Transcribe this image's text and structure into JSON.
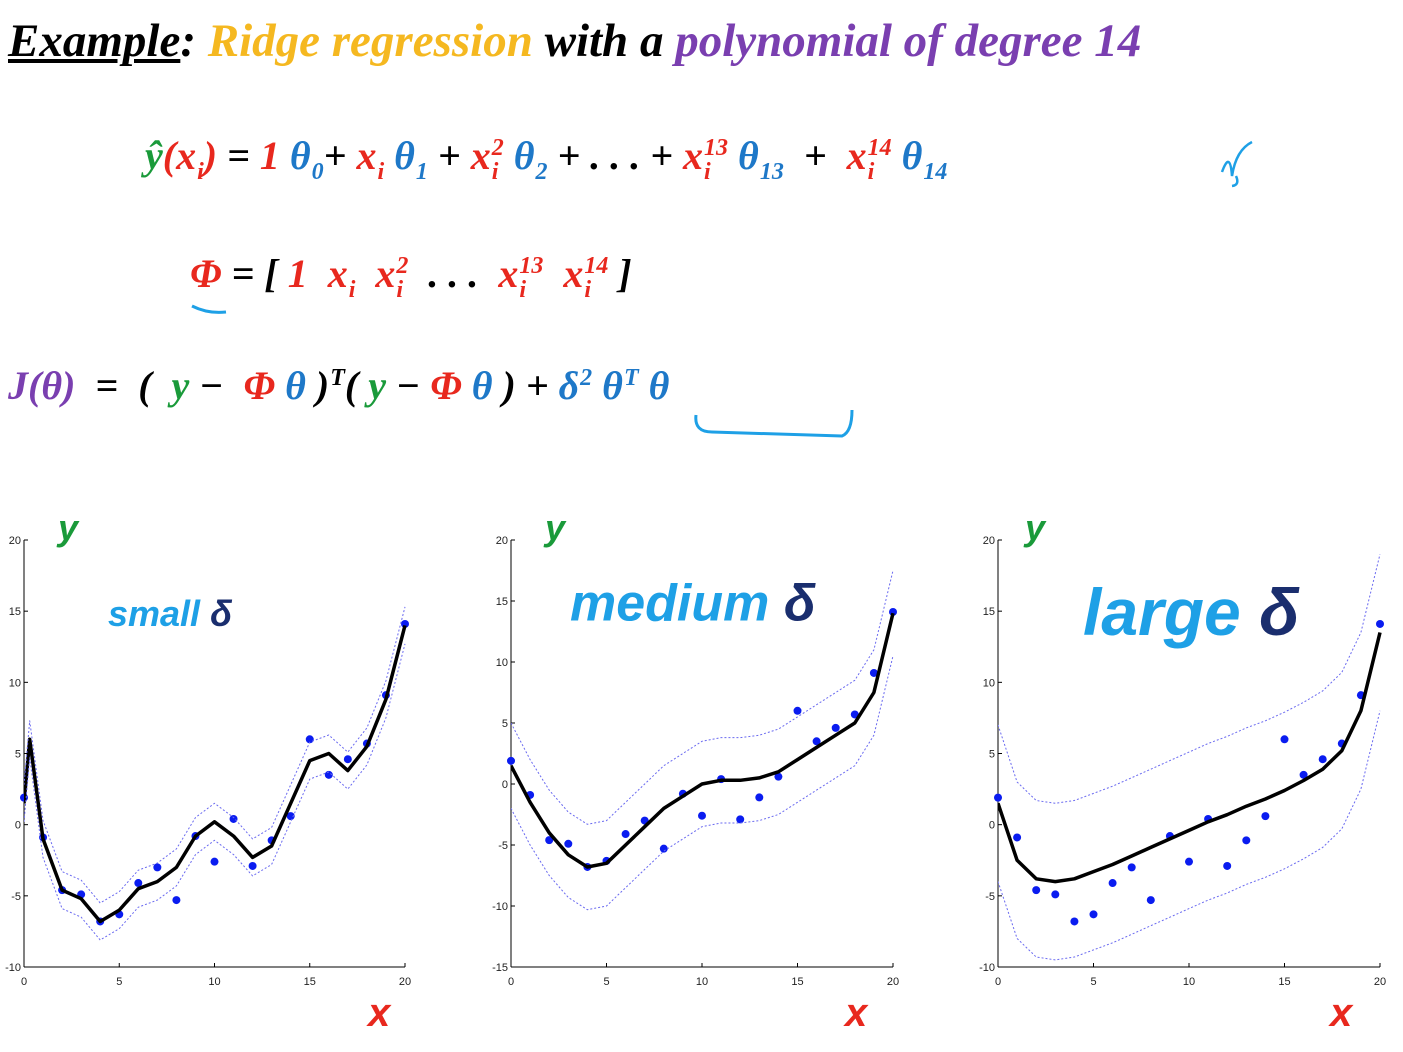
{
  "slide": {
    "title": [
      {
        "t": "Example",
        "color": "#000000",
        "underline": true
      },
      {
        "t": ": ",
        "color": "#000000"
      },
      {
        "t": "Ridge regression ",
        "color": "#f5b820"
      },
      {
        "t": "with a ",
        "color": "#000000"
      },
      {
        "t": "polynomial of degree 14",
        "color": "#7a3fb0"
      }
    ],
    "equations": [
      [
        {
          "t": "ŷ",
          "color": "#1a9a3a"
        },
        {
          "t": "(x",
          "sub": "i",
          "color": "#e8281e"
        },
        {
          "t": ") ",
          "color": "#e8281e"
        },
        {
          "t": "= ",
          "color": "#000000"
        },
        {
          "t": "1 ",
          "color": "#e8281e"
        },
        {
          "t": "θ",
          "sub": "0",
          "color": "#1e78c8"
        },
        {
          "t": "+ ",
          "color": "#000000"
        },
        {
          "t": "x",
          "sub": "i",
          "color": "#e8281e"
        },
        {
          "t": " θ",
          "sub": "1",
          "color": "#1e78c8"
        },
        {
          "t": " + ",
          "color": "#000000"
        },
        {
          "t": "x",
          "sub": "i",
          "sup": "2",
          "color": "#e8281e"
        },
        {
          "t": " θ",
          "sub": "2",
          "color": "#1e78c8"
        },
        {
          "t": " + . . . + ",
          "color": "#000000"
        },
        {
          "t": "x",
          "sub": "i",
          "sup": "13",
          "color": "#e8281e"
        },
        {
          "t": " θ",
          "sub": "13",
          "color": "#1e78c8"
        },
        {
          "t": "  +  ",
          "color": "#000000"
        },
        {
          "t": "x",
          "sub": "i",
          "sup": "14",
          "color": "#e8281e"
        },
        {
          "t": " θ",
          "sub": "14",
          "color": "#1e78c8"
        }
      ],
      [
        {
          "t": "Φ",
          "color": "#e8281e"
        },
        {
          "t": " = [ ",
          "color": "#000000"
        },
        {
          "t": "1  x",
          "sub": "i",
          "color": "#e8281e"
        },
        {
          "t": "  x",
          "sub": "i",
          "sup": "2",
          "color": "#e8281e"
        },
        {
          "t": "  . . .  ",
          "color": "#000000"
        },
        {
          "t": "x",
          "sub": "i",
          "sup": "13",
          "color": "#e8281e"
        },
        {
          "t": "  x",
          "sub": "i",
          "sup": "14",
          "color": "#e8281e"
        },
        {
          "t": " ]",
          "color": "#000000"
        }
      ],
      [
        {
          "t": "J(θ)",
          "color": "#7a3fb0"
        },
        {
          "t": "  =  (  ",
          "color": "#000000"
        },
        {
          "t": "y",
          "color": "#1a9a3a"
        },
        {
          "t": " −  ",
          "color": "#000000"
        },
        {
          "t": "Φ",
          "color": "#e8281e"
        },
        {
          "t": " θ",
          "color": "#1e78c8"
        },
        {
          "t": " )",
          "sup": "T",
          "color": "#000000"
        },
        {
          "t": "( ",
          "color": "#000000"
        },
        {
          "t": "y",
          "color": "#1a9a3a"
        },
        {
          "t": " − ",
          "color": "#000000"
        },
        {
          "t": "Φ",
          "color": "#e8281e"
        },
        {
          "t": " θ",
          "color": "#1e78c8"
        },
        {
          "t": " ) + ",
          "color": "#000000"
        },
        {
          "t": "δ",
          "sup": "2",
          "color": "#1e78c8"
        },
        {
          "t": " θ",
          "sup": "T",
          "color": "#1e78c8"
        },
        {
          "t": " θ",
          "color": "#1e78c8"
        }
      ]
    ]
  },
  "chart_data": [
    {
      "type": "line",
      "y_label": "y",
      "x_label": "x",
      "annotation": "small ",
      "annotation_symbol": "δ",
      "xlim": [
        0,
        20
      ],
      "ylim": [
        -10,
        20
      ],
      "xticks": [
        0,
        5,
        10,
        15,
        20
      ],
      "yticks": [
        -10,
        -5,
        0,
        5,
        10,
        15,
        20
      ],
      "series": [
        {
          "mode": "points",
          "color": "#0a1cf0",
          "x": [
            0,
            1,
            2,
            3,
            4,
            5,
            6,
            7,
            8,
            9,
            10,
            11,
            12,
            13,
            14,
            15,
            16,
            17,
            18,
            19,
            20
          ],
          "values": [
            1.9,
            -0.9,
            -4.6,
            -4.9,
            -6.8,
            -6.3,
            -4.1,
            -3.0,
            -5.3,
            -0.8,
            -2.6,
            0.4,
            -2.9,
            -1.1,
            0.6,
            6.0,
            3.5,
            4.6,
            5.7,
            9.1,
            14.1
          ]
        },
        {
          "mode": "line",
          "color": "#000000",
          "x": [
            0,
            0.3,
            1,
            2,
            3,
            4,
            5,
            6,
            7,
            8,
            9,
            10,
            11,
            12,
            13,
            14,
            15,
            16,
            17,
            18,
            19,
            20
          ],
          "values": [
            1.5,
            6,
            -1,
            -4.6,
            -5.2,
            -6.8,
            -6,
            -4.5,
            -4,
            -3,
            -0.8,
            0.2,
            -0.8,
            -2.3,
            -1.5,
            1.5,
            4.5,
            5,
            3.8,
            5.5,
            8.8,
            14
          ]
        },
        {
          "mode": "dotted",
          "color": "#6a6af0",
          "x": [
            0,
            0.3,
            1,
            2,
            3,
            4,
            5,
            6,
            7,
            8,
            9,
            10,
            11,
            12,
            13,
            14,
            15,
            16,
            17,
            18,
            19,
            20
          ],
          "values": [
            2.8,
            7.3,
            0.3,
            -3.3,
            -3.9,
            -5.5,
            -4.7,
            -3.2,
            -2.7,
            -1.7,
            0.5,
            1.5,
            0.5,
            -1,
            -0.2,
            2.8,
            5.8,
            6.3,
            5.1,
            6.8,
            10.1,
            15.3
          ]
        },
        {
          "mode": "dotted",
          "color": "#6a6af0",
          "x": [
            0,
            0.3,
            1,
            2,
            3,
            4,
            5,
            6,
            7,
            8,
            9,
            10,
            11,
            12,
            13,
            14,
            15,
            16,
            17,
            18,
            19,
            20
          ],
          "values": [
            0.2,
            4.7,
            -2.3,
            -5.9,
            -6.5,
            -8.1,
            -7.3,
            -5.8,
            -5.3,
            -4.3,
            -2.1,
            -1.1,
            -2.1,
            -3.6,
            -2.8,
            0.2,
            3.2,
            3.7,
            2.5,
            4.2,
            7.5,
            12.7
          ]
        }
      ]
    },
    {
      "type": "line",
      "y_label": "y",
      "x_label": "x",
      "annotation": "medium ",
      "annotation_symbol": "δ",
      "xlim": [
        0,
        20
      ],
      "ylim": [
        -15,
        20
      ],
      "xticks": [
        0,
        5,
        10,
        15,
        20
      ],
      "yticks": [
        -15,
        -10,
        -5,
        0,
        5,
        10,
        15,
        20
      ],
      "series": [
        {
          "mode": "points",
          "color": "#0a1cf0",
          "x": [
            0,
            1,
            2,
            3,
            4,
            5,
            6,
            7,
            8,
            9,
            10,
            11,
            12,
            13,
            14,
            15,
            16,
            17,
            18,
            19,
            20
          ],
          "values": [
            1.9,
            -0.9,
            -4.6,
            -4.9,
            -6.8,
            -6.3,
            -4.1,
            -3.0,
            -5.3,
            -0.8,
            -2.6,
            0.4,
            -2.9,
            -1.1,
            0.6,
            6.0,
            3.5,
            4.6,
            5.7,
            9.1,
            14.1
          ]
        },
        {
          "mode": "line",
          "color": "#000000",
          "x": [
            0,
            1,
            2,
            3,
            4,
            5,
            6,
            7,
            8,
            9,
            10,
            11,
            12,
            13,
            14,
            15,
            16,
            17,
            18,
            19,
            20
          ],
          "values": [
            1.5,
            -1.5,
            -4,
            -5.8,
            -6.8,
            -6.5,
            -5,
            -3.5,
            -2,
            -1,
            0,
            0.3,
            0.3,
            0.5,
            1,
            2,
            3,
            4,
            5,
            7.5,
            14
          ]
        },
        {
          "mode": "dotted",
          "color": "#6a6af0",
          "x": [
            0,
            1,
            2,
            3,
            4,
            5,
            6,
            7,
            8,
            9,
            10,
            11,
            12,
            13,
            14,
            15,
            16,
            17,
            18,
            19,
            20
          ],
          "values": [
            5,
            2,
            -0.5,
            -2.3,
            -3.3,
            -3,
            -1.5,
            0,
            1.5,
            2.5,
            3.5,
            3.8,
            3.8,
            4,
            4.5,
            5.5,
            6.5,
            7.5,
            8.5,
            11,
            17.5
          ]
        },
        {
          "mode": "dotted",
          "color": "#6a6af0",
          "x": [
            0,
            1,
            2,
            3,
            4,
            5,
            6,
            7,
            8,
            9,
            10,
            11,
            12,
            13,
            14,
            15,
            16,
            17,
            18,
            19,
            20
          ],
          "values": [
            -2,
            -5,
            -7.5,
            -9.3,
            -10.3,
            -10,
            -8.5,
            -7,
            -5.5,
            -4.5,
            -3.5,
            -3.2,
            -3.2,
            -3,
            -2.5,
            -1.5,
            -0.5,
            0.5,
            1.5,
            4,
            10.5
          ]
        }
      ]
    },
    {
      "type": "line",
      "y_label": "y",
      "x_label": "x",
      "annotation": "large ",
      "annotation_symbol": "δ",
      "xlim": [
        0,
        20
      ],
      "ylim": [
        -10,
        20
      ],
      "xticks": [
        0,
        5,
        10,
        15,
        20
      ],
      "yticks": [
        -10,
        -5,
        0,
        5,
        10,
        15,
        20
      ],
      "series": [
        {
          "mode": "points",
          "color": "#0a1cf0",
          "x": [
            0,
            1,
            2,
            3,
            4,
            5,
            6,
            7,
            8,
            9,
            10,
            11,
            12,
            13,
            14,
            15,
            16,
            17,
            18,
            19,
            20
          ],
          "values": [
            1.9,
            -0.9,
            -4.6,
            -4.9,
            -6.8,
            -6.3,
            -4.1,
            -3.0,
            -5.3,
            -0.8,
            -2.6,
            0.4,
            -2.9,
            -1.1,
            0.6,
            6.0,
            3.5,
            4.6,
            5.7,
            9.1,
            14.1
          ]
        },
        {
          "mode": "line",
          "color": "#000000",
          "x": [
            0,
            1,
            2,
            3,
            4,
            5,
            6,
            7,
            8,
            9,
            10,
            11,
            12,
            13,
            14,
            15,
            16,
            17,
            18,
            19,
            20
          ],
          "values": [
            1.5,
            -2.5,
            -3.8,
            -4,
            -3.8,
            -3.3,
            -2.8,
            -2.2,
            -1.6,
            -1,
            -0.4,
            0.2,
            0.7,
            1.3,
            1.8,
            2.4,
            3.1,
            3.9,
            5.2,
            8,
            13.5
          ]
        },
        {
          "mode": "dotted",
          "color": "#6a6af0",
          "x": [
            0,
            1,
            2,
            3,
            4,
            5,
            6,
            7,
            8,
            9,
            10,
            11,
            12,
            13,
            14,
            15,
            16,
            17,
            18,
            19,
            20
          ],
          "values": [
            7,
            3,
            1.7,
            1.5,
            1.7,
            2.2,
            2.7,
            3.3,
            3.9,
            4.5,
            5.1,
            5.7,
            6.2,
            6.8,
            7.3,
            7.9,
            8.6,
            9.4,
            10.7,
            13.5,
            19
          ]
        },
        {
          "mode": "dotted",
          "color": "#6a6af0",
          "x": [
            0,
            1,
            2,
            3,
            4,
            5,
            6,
            7,
            8,
            9,
            10,
            11,
            12,
            13,
            14,
            15,
            16,
            17,
            18,
            19,
            20
          ],
          "values": [
            -4,
            -8,
            -9.3,
            -9.5,
            -9.3,
            -8.8,
            -8.3,
            -7.7,
            -7.1,
            -6.5,
            -5.9,
            -5.3,
            -4.8,
            -4.2,
            -3.7,
            -3.1,
            -2.4,
            -1.6,
            -0.3,
            2.5,
            8
          ]
        }
      ]
    }
  ]
}
